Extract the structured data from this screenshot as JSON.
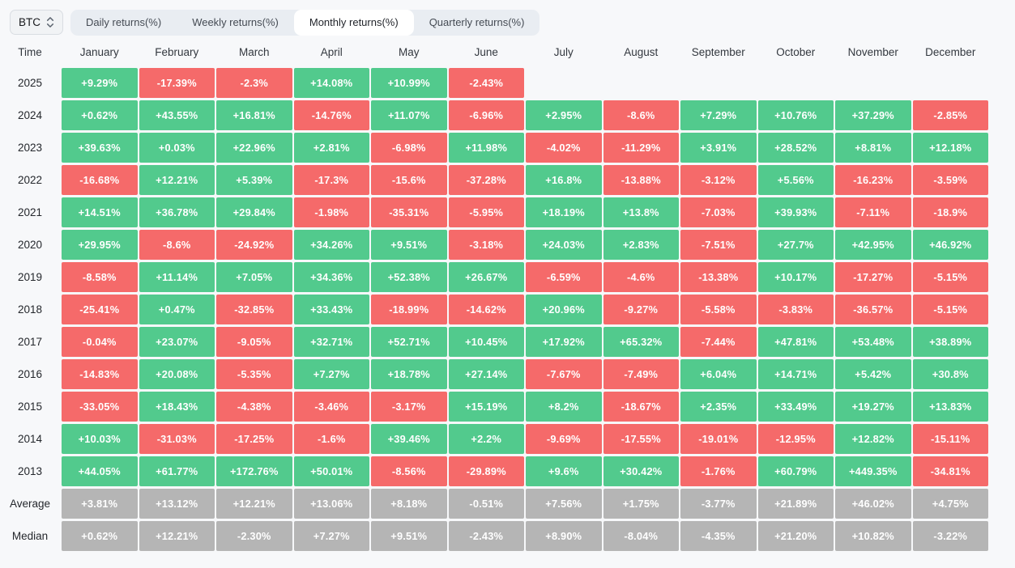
{
  "controls": {
    "asset_selector": {
      "value": "BTC"
    },
    "tabs": [
      {
        "id": "daily",
        "label": "Daily returns(%)",
        "active": false
      },
      {
        "id": "weekly",
        "label": "Weekly returns(%)",
        "active": false
      },
      {
        "id": "monthly",
        "label": "Monthly returns(%)",
        "active": true
      },
      {
        "id": "quarterly",
        "label": "Quarterly returns(%)",
        "active": false
      }
    ]
  },
  "colors": {
    "positive": "#52ca8d",
    "negative": "#f56a6a",
    "summary": "#b5b5b5"
  },
  "table": {
    "time_header": "Time",
    "months": [
      "January",
      "February",
      "March",
      "April",
      "May",
      "June",
      "July",
      "August",
      "September",
      "October",
      "November",
      "December"
    ],
    "rows": [
      {
        "label": "2025",
        "type": "year",
        "values": [
          "+9.29%",
          "-17.39%",
          "-2.3%",
          "+14.08%",
          "+10.99%",
          "-2.43%",
          null,
          null,
          null,
          null,
          null,
          null
        ]
      },
      {
        "label": "2024",
        "type": "year",
        "values": [
          "+0.62%",
          "+43.55%",
          "+16.81%",
          "-14.76%",
          "+11.07%",
          "-6.96%",
          "+2.95%",
          "-8.6%",
          "+7.29%",
          "+10.76%",
          "+37.29%",
          "-2.85%"
        ]
      },
      {
        "label": "2023",
        "type": "year",
        "values": [
          "+39.63%",
          "+0.03%",
          "+22.96%",
          "+2.81%",
          "-6.98%",
          "+11.98%",
          "-4.02%",
          "-11.29%",
          "+3.91%",
          "+28.52%",
          "+8.81%",
          "+12.18%"
        ]
      },
      {
        "label": "2022",
        "type": "year",
        "values": [
          "-16.68%",
          "+12.21%",
          "+5.39%",
          "-17.3%",
          "-15.6%",
          "-37.28%",
          "+16.8%",
          "-13.88%",
          "-3.12%",
          "+5.56%",
          "-16.23%",
          "-3.59%"
        ]
      },
      {
        "label": "2021",
        "type": "year",
        "values": [
          "+14.51%",
          "+36.78%",
          "+29.84%",
          "-1.98%",
          "-35.31%",
          "-5.95%",
          "+18.19%",
          "+13.8%",
          "-7.03%",
          "+39.93%",
          "-7.11%",
          "-18.9%"
        ]
      },
      {
        "label": "2020",
        "type": "year",
        "values": [
          "+29.95%",
          "-8.6%",
          "-24.92%",
          "+34.26%",
          "+9.51%",
          "-3.18%",
          "+24.03%",
          "+2.83%",
          "-7.51%",
          "+27.7%",
          "+42.95%",
          "+46.92%"
        ]
      },
      {
        "label": "2019",
        "type": "year",
        "values": [
          "-8.58%",
          "+11.14%",
          "+7.05%",
          "+34.36%",
          "+52.38%",
          "+26.67%",
          "-6.59%",
          "-4.6%",
          "-13.38%",
          "+10.17%",
          "-17.27%",
          "-5.15%"
        ]
      },
      {
        "label": "2018",
        "type": "year",
        "values": [
          "-25.41%",
          "+0.47%",
          "-32.85%",
          "+33.43%",
          "-18.99%",
          "-14.62%",
          "+20.96%",
          "-9.27%",
          "-5.58%",
          "-3.83%",
          "-36.57%",
          "-5.15%"
        ]
      },
      {
        "label": "2017",
        "type": "year",
        "values": [
          "-0.04%",
          "+23.07%",
          "-9.05%",
          "+32.71%",
          "+52.71%",
          "+10.45%",
          "+17.92%",
          "+65.32%",
          "-7.44%",
          "+47.81%",
          "+53.48%",
          "+38.89%"
        ]
      },
      {
        "label": "2016",
        "type": "year",
        "values": [
          "-14.83%",
          "+20.08%",
          "-5.35%",
          "+7.27%",
          "+18.78%",
          "+27.14%",
          "-7.67%",
          "-7.49%",
          "+6.04%",
          "+14.71%",
          "+5.42%",
          "+30.8%"
        ]
      },
      {
        "label": "2015",
        "type": "year",
        "values": [
          "-33.05%",
          "+18.43%",
          "-4.38%",
          "-3.46%",
          "-3.17%",
          "+15.19%",
          "+8.2%",
          "-18.67%",
          "+2.35%",
          "+33.49%",
          "+19.27%",
          "+13.83%"
        ]
      },
      {
        "label": "2014",
        "type": "year",
        "values": [
          "+10.03%",
          "-31.03%",
          "-17.25%",
          "-1.6%",
          "+39.46%",
          "+2.2%",
          "-9.69%",
          "-17.55%",
          "-19.01%",
          "-12.95%",
          "+12.82%",
          "-15.11%"
        ]
      },
      {
        "label": "2013",
        "type": "year",
        "values": [
          "+44.05%",
          "+61.77%",
          "+172.76%",
          "+50.01%",
          "-8.56%",
          "-29.89%",
          "+9.6%",
          "+30.42%",
          "-1.76%",
          "+60.79%",
          "+449.35%",
          "-34.81%"
        ]
      },
      {
        "label": "Average",
        "type": "summary",
        "values": [
          "+3.81%",
          "+13.12%",
          "+12.21%",
          "+13.06%",
          "+8.18%",
          "-0.51%",
          "+7.56%",
          "+1.75%",
          "-3.77%",
          "+21.89%",
          "+46.02%",
          "+4.75%"
        ]
      },
      {
        "label": "Median",
        "type": "summary",
        "values": [
          "+0.62%",
          "+12.21%",
          "-2.30%",
          "+7.27%",
          "+9.51%",
          "-2.43%",
          "+8.90%",
          "-8.04%",
          "-4.35%",
          "+21.20%",
          "+10.82%",
          "-3.22%"
        ]
      }
    ]
  }
}
